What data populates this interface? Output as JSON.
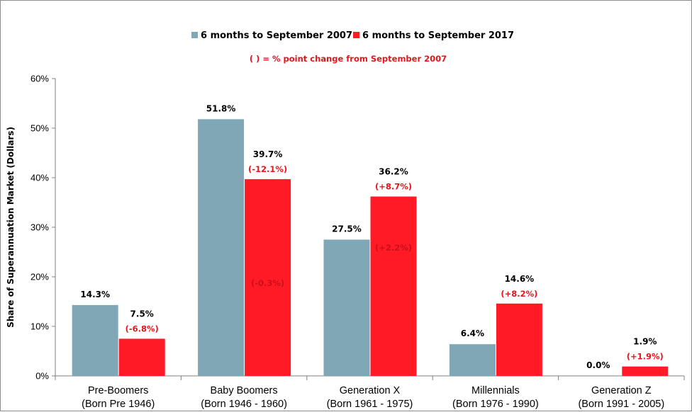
{
  "colors": {
    "series_2007": "#7fa7b6",
    "series_2017": "#ff1a26",
    "note": "#e8141c",
    "axis": "#808080"
  },
  "chart_data": {
    "type": "bar",
    "title": "",
    "ylabel": "Share of Superannuation Market (Dollars)",
    "xlabel": "",
    "ylim": [
      0,
      60
    ],
    "y_ticks": [
      0,
      10,
      20,
      30,
      40,
      50,
      60
    ],
    "y_tick_labels": [
      "0%",
      "10%",
      "20%",
      "30%",
      "40%",
      "50%",
      "60%"
    ],
    "grid": false,
    "legend_position": "top-center",
    "note": "( ) = % point change from September 2007",
    "categories": [
      [
        "Pre-Boomers",
        "(Born Pre 1946)"
      ],
      [
        "Baby Boomers",
        "(Born 1946 - 1960)"
      ],
      [
        "Generation X",
        "(Born 1961 - 1975)"
      ],
      [
        "Millennials",
        "(Born 1976 - 1990)"
      ],
      [
        "Generation Z",
        "(Born 1991 - 2005)"
      ]
    ],
    "series": [
      {
        "name": "6 months to September 2007",
        "values": [
          14.3,
          51.8,
          27.5,
          6.4,
          0.0
        ],
        "labels": [
          "14.3%",
          "51.8%",
          "27.5%",
          "6.4%",
          "0.0%"
        ]
      },
      {
        "name": "6 months to September 2017",
        "values": [
          7.5,
          39.7,
          36.2,
          14.6,
          1.9
        ],
        "labels": [
          "7.5%",
          "39.7%",
          "36.2%",
          "14.6%",
          "1.9%"
        ],
        "change_labels": [
          "(-6.8%)",
          "(-12.1%)",
          "(+8.7%)",
          "(+8.2%)",
          "(+1.9%)"
        ]
      }
    ],
    "inner_annotations": [
      {
        "category_index": 1,
        "series_index": 1,
        "text": "(-0.3%)"
      },
      {
        "category_index": 2,
        "series_index": 1,
        "text": "(+2.2%)"
      }
    ]
  }
}
